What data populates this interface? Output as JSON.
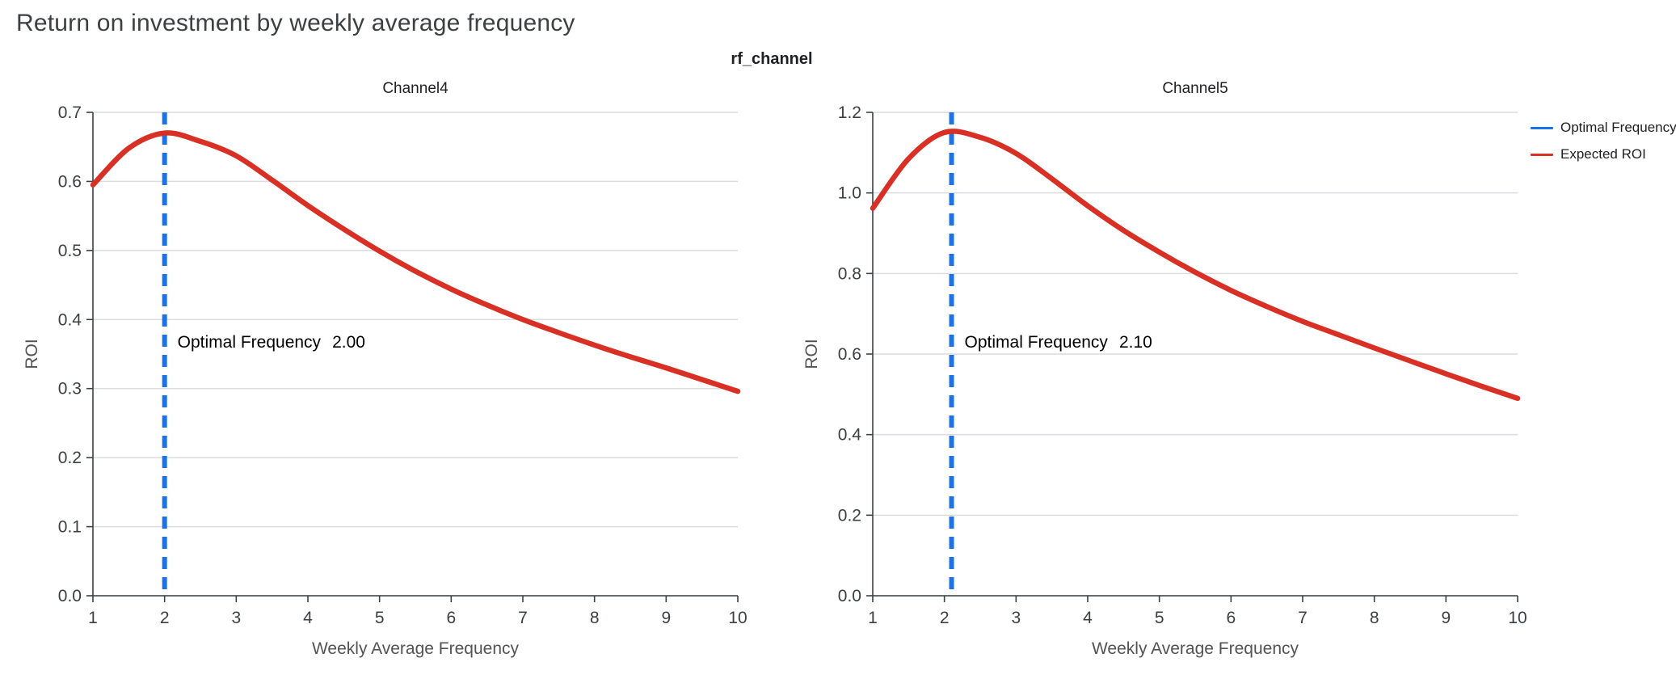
{
  "page": {
    "title": "Return on investment by weekly average frequency",
    "facet_title": "rf_channel"
  },
  "legend": {
    "position": "top-right",
    "items": [
      {
        "label": "Optimal Frequency",
        "color": "#1a73e8"
      },
      {
        "label": "Expected ROI",
        "color": "#d93025"
      }
    ]
  },
  "chart_data": [
    {
      "type": "line",
      "title": "Channel4",
      "xlabel": "Weekly Average Frequency",
      "ylabel": "ROI",
      "xlim": [
        1,
        10
      ],
      "ylim": [
        0,
        0.7
      ],
      "xticks": [
        1,
        2,
        3,
        4,
        5,
        6,
        7,
        8,
        9,
        10
      ],
      "yticks": [
        0,
        0.1,
        0.2,
        0.3,
        0.4,
        0.5,
        0.6,
        0.7
      ],
      "ytick_decimals": 1,
      "grid": "horizontal",
      "series": [
        {
          "name": "Expected ROI",
          "color": "#d93025",
          "x": [
            1,
            1.5,
            2,
            2.5,
            3,
            3.5,
            4,
            4.5,
            5,
            5.5,
            6,
            6.5,
            7,
            7.5,
            8,
            8.5,
            9,
            9.5,
            10
          ],
          "y": [
            0.595,
            0.648,
            0.67,
            0.658,
            0.637,
            0.602,
            0.565,
            0.531,
            0.499,
            0.47,
            0.444,
            0.421,
            0.4,
            0.381,
            0.363,
            0.346,
            0.33,
            0.313,
            0.296
          ]
        }
      ],
      "optimal_frequency": {
        "value": 2.0,
        "color": "#1a73e8",
        "annotation_label": "Optimal Frequency",
        "annotation_value": "2.00"
      }
    },
    {
      "type": "line",
      "title": "Channel5",
      "xlabel": "Weekly Average Frequency",
      "ylabel": "ROI",
      "xlim": [
        1,
        10
      ],
      "ylim": [
        0,
        1.2
      ],
      "xticks": [
        1,
        2,
        3,
        4,
        5,
        6,
        7,
        8,
        9,
        10
      ],
      "yticks": [
        0,
        0.2,
        0.4,
        0.6,
        0.8,
        1.0,
        1.2
      ],
      "ytick_decimals": 1,
      "grid": "horizontal",
      "series": [
        {
          "name": "Expected ROI",
          "color": "#d93025",
          "x": [
            1,
            1.5,
            2,
            2.5,
            3,
            3.5,
            4,
            4.5,
            5,
            5.5,
            6,
            6.5,
            7,
            7.5,
            8,
            8.5,
            9,
            9.5,
            10
          ],
          "y": [
            0.962,
            1.085,
            1.15,
            1.138,
            1.098,
            1.035,
            0.968,
            0.907,
            0.853,
            0.803,
            0.758,
            0.718,
            0.681,
            0.648,
            0.615,
            0.583,
            0.551,
            0.52,
            0.49
          ]
        }
      ],
      "optimal_frequency": {
        "value": 2.1,
        "color": "#1a73e8",
        "annotation_label": "Optimal Frequency",
        "annotation_value": "2.10"
      }
    }
  ]
}
